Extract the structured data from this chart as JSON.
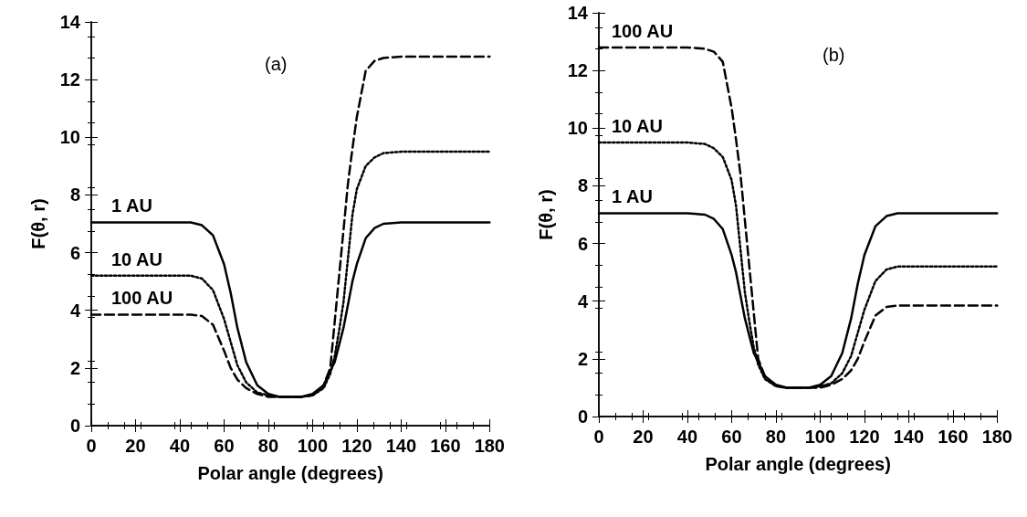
{
  "chart_data": [
    {
      "type": "line",
      "title": "(a)",
      "xlabel": "Polar angle (degrees)",
      "ylabel": "F(θ, r)",
      "xlim": [
        0,
        180
      ],
      "xticks": [
        0,
        20,
        40,
        60,
        80,
        100,
        120,
        140,
        160,
        180
      ],
      "ylim": [
        0,
        14
      ],
      "yticks": [
        0,
        2,
        4,
        6,
        8,
        10,
        12,
        14
      ],
      "grid": false,
      "marker": "none",
      "x": [
        0,
        45,
        50,
        55,
        60,
        63,
        66,
        70,
        75,
        80,
        85,
        90,
        95,
        100,
        105,
        108,
        110,
        112,
        114,
        116,
        118,
        120,
        124,
        128,
        132,
        140,
        180
      ],
      "series": [
        {
          "name": "1 AU",
          "color": "#000000",
          "line_style": "solid",
          "values": [
            7.05,
            7.05,
            6.95,
            6.6,
            5.6,
            4.6,
            3.4,
            2.2,
            1.4,
            1.1,
            1.0,
            1.0,
            1.0,
            1.1,
            1.4,
            1.9,
            2.2,
            2.8,
            3.4,
            4.2,
            5.0,
            5.6,
            6.5,
            6.85,
            7.0,
            7.05,
            7.05
          ]
        },
        {
          "name": "10 AU",
          "color": "#000000",
          "line_style": "dotted",
          "values": [
            5.2,
            5.2,
            5.1,
            4.7,
            3.7,
            2.9,
            2.1,
            1.5,
            1.15,
            1.05,
            1.0,
            1.0,
            1.0,
            1.05,
            1.3,
            1.8,
            2.4,
            3.3,
            4.3,
            5.8,
            7.3,
            8.2,
            9.0,
            9.3,
            9.45,
            9.5,
            9.5
          ]
        },
        {
          "name": "100 AU",
          "color": "#000000",
          "line_style": "dashed",
          "values": [
            3.85,
            3.85,
            3.8,
            3.5,
            2.6,
            2.0,
            1.6,
            1.3,
            1.1,
            1.0,
            1.0,
            1.0,
            1.0,
            1.05,
            1.4,
            2.0,
            3.6,
            5.2,
            6.8,
            8.4,
            9.6,
            10.7,
            12.3,
            12.65,
            12.75,
            12.8,
            12.8
          ]
        }
      ]
    },
    {
      "type": "line",
      "title": "(b)",
      "xlabel": "Polar angle (degrees)",
      "ylabel": "F(θ, r)",
      "xlim": [
        0,
        180
      ],
      "xticks": [
        0,
        20,
        40,
        60,
        80,
        100,
        120,
        140,
        160,
        180
      ],
      "ylim": [
        0,
        14
      ],
      "yticks": [
        0,
        2,
        4,
        6,
        8,
        10,
        12,
        14
      ],
      "grid": false,
      "marker": "none",
      "x": [
        0,
        40,
        48,
        52,
        56,
        60,
        62,
        64,
        66,
        68,
        70,
        72,
        75,
        80,
        85,
        90,
        95,
        100,
        105,
        110,
        114,
        117,
        120,
        125,
        130,
        135,
        180
      ],
      "series": [
        {
          "name": "1 AU",
          "color": "#000000",
          "line_style": "solid",
          "values": [
            7.05,
            7.05,
            7.0,
            6.85,
            6.5,
            5.6,
            5.0,
            4.2,
            3.4,
            2.8,
            2.2,
            1.9,
            1.4,
            1.1,
            1.0,
            1.0,
            1.0,
            1.1,
            1.4,
            2.2,
            3.4,
            4.6,
            5.6,
            6.6,
            6.95,
            7.05,
            7.05
          ]
        },
        {
          "name": "10 AU",
          "color": "#000000",
          "line_style": "dotted",
          "values": [
            9.5,
            9.5,
            9.45,
            9.3,
            9.0,
            8.2,
            7.3,
            5.8,
            4.3,
            3.3,
            2.4,
            1.8,
            1.3,
            1.05,
            1.0,
            1.0,
            1.0,
            1.05,
            1.15,
            1.5,
            2.1,
            2.9,
            3.7,
            4.7,
            5.1,
            5.2,
            5.2
          ]
        },
        {
          "name": "100 AU",
          "color": "#000000",
          "line_style": "dashed",
          "values": [
            12.8,
            12.8,
            12.75,
            12.65,
            12.3,
            10.7,
            9.6,
            8.4,
            6.8,
            5.2,
            3.6,
            2.0,
            1.4,
            1.05,
            1.0,
            1.0,
            1.0,
            1.0,
            1.1,
            1.3,
            1.6,
            2.0,
            2.6,
            3.5,
            3.8,
            3.85,
            3.85
          ]
        }
      ]
    }
  ]
}
